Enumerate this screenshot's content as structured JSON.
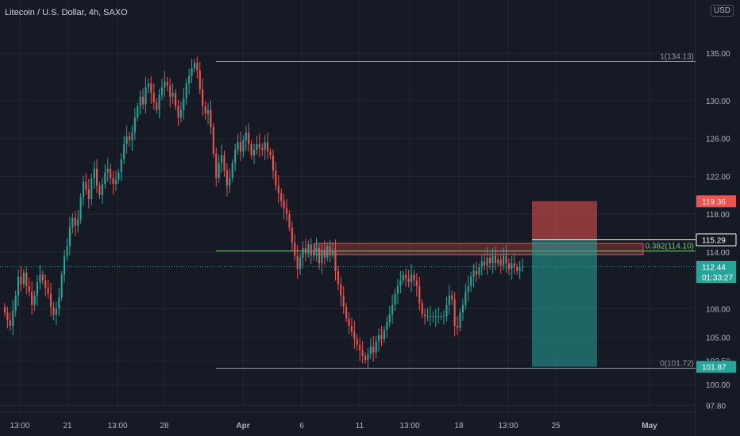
{
  "header": {
    "title": "Litecoin / U.S. Dollar, 4h, SAXO",
    "currency_button": "USD"
  },
  "colors": {
    "up": "#26a69a",
    "down": "#ef5350",
    "background": "#161a25",
    "grid": "#232734",
    "text": "#b2b5be"
  },
  "chart_data": {
    "type": "candlestick",
    "y_axis": {
      "ylim": [
        97.8,
        137.5
      ],
      "ticks": [
        "135.00",
        "130.00",
        "126.00",
        "122.00",
        "118.00",
        "114.00",
        "108.00",
        "105.00",
        "102.50",
        "100.00",
        "97.80"
      ]
    },
    "x_axis": {
      "ticks": [
        "13:00",
        "21",
        "13:00",
        "28",
        "Apr",
        "6",
        "11",
        "13:00",
        "18",
        "13:00",
        "25",
        "May"
      ]
    },
    "price_tags": [
      {
        "label": "119.36",
        "value": 119.36,
        "color": "#ef5350"
      },
      {
        "label": "115.29",
        "value": 115.29,
        "color": "#ffffff"
      },
      {
        "label": "112.44",
        "sublabel": "01:33:27",
        "value": 112.44,
        "color": "#26a69a"
      },
      {
        "label": "101.87",
        "value": 101.87,
        "color": "#26a69a"
      }
    ],
    "fib_levels": [
      {
        "label": "1(134.13)",
        "value": 134.13
      },
      {
        "label": "0.382(114.10)",
        "value": 114.1
      },
      {
        "label": "0(101.72)",
        "value": 101.72
      }
    ],
    "zone": {
      "upper": 114.9,
      "lower": 113.7
    },
    "position": {
      "stop": 119.36,
      "entry": 115.29,
      "target": 101.87
    },
    "candles_close": [
      107.6,
      106.8,
      106.2,
      107.8,
      109.4,
      111.4,
      110.6,
      111.8,
      110.4,
      109.8,
      108.4,
      109.4,
      110.8,
      111.6,
      111.0,
      110.2,
      109.6,
      108.2,
      107.4,
      108.0,
      109.2,
      111.6,
      113.6,
      114.6,
      116.6,
      117.6,
      116.8,
      117.4,
      119.8,
      121.4,
      120.6,
      119.6,
      121.8,
      122.8,
      121.0,
      120.0,
      121.2,
      122.4,
      122.8,
      121.8,
      121.2,
      121.6,
      122.4,
      123.8,
      125.4,
      126.2,
      125.8,
      126.6,
      128.2,
      129.4,
      130.4,
      129.6,
      131.4,
      131.8,
      130.8,
      129.8,
      129.0,
      130.6,
      131.4,
      132.0,
      131.6,
      130.4,
      130.8,
      129.4,
      128.2,
      129.0,
      130.2,
      131.8,
      132.6,
      133.4,
      134.0,
      133.2,
      131.2,
      129.4,
      128.6,
      129.0,
      127.2,
      124.4,
      121.8,
      123.4,
      124.2,
      122.6,
      121.0,
      121.8,
      123.4,
      124.8,
      125.6,
      124.6,
      125.8,
      126.6,
      125.4,
      124.2,
      124.8,
      125.4,
      125.0,
      124.8,
      125.6,
      124.6,
      124.2,
      122.6,
      121.0,
      120.2,
      119.4,
      118.6,
      118.0,
      116.6,
      115.0,
      113.6,
      112.2,
      113.4,
      114.4,
      113.8,
      114.8,
      113.6,
      114.0,
      114.4,
      112.8,
      114.2,
      113.4,
      114.6,
      113.8,
      114.2,
      112.0,
      110.6,
      109.4,
      108.2,
      107.0,
      106.2,
      105.6,
      104.8,
      104.2,
      103.6,
      103.0,
      102.6,
      103.2,
      104.0,
      103.4,
      104.6,
      105.2,
      104.8,
      105.8,
      106.6,
      107.4,
      108.4,
      109.6,
      110.4,
      111.0,
      111.6,
      111.2,
      110.8,
      111.6,
      111.0,
      110.4,
      108.6,
      107.4,
      107.2,
      107.2,
      107.2,
      107.2,
      107.2,
      107.2,
      107.2,
      107.2,
      108.4,
      109.4,
      109.0,
      106.2,
      106.0,
      107.6,
      108.4,
      109.8,
      110.4,
      111.4,
      112.0,
      111.6,
      112.4,
      113.0,
      112.6,
      113.4,
      112.8,
      113.6,
      112.8,
      113.2,
      112.6,
      113.6,
      112.8,
      112.2,
      112.8,
      112.4,
      112.0,
      112.4,
      112.44
    ]
  }
}
